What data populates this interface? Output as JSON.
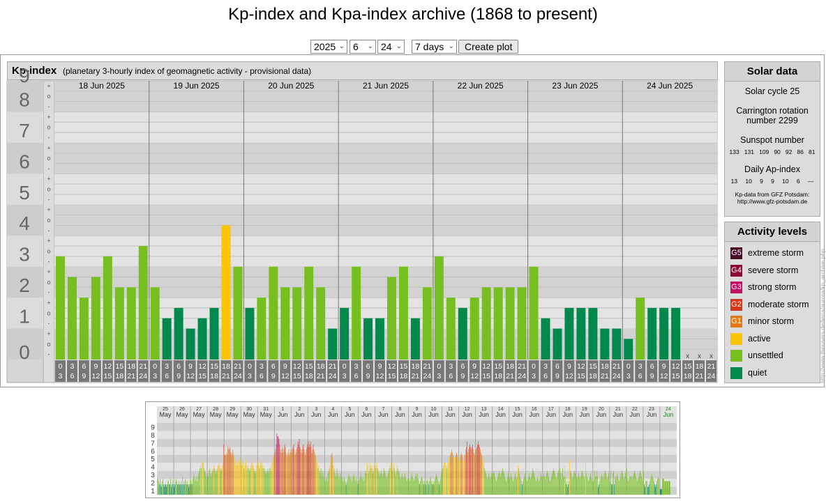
{
  "page": {
    "title": "Kp-index and Kpa-index archive (1868 to present)"
  },
  "controls": {
    "year": "2025",
    "month": "6",
    "day": "24",
    "range": "7 days",
    "create_plot_label": "Create plot"
  },
  "kp_panel": {
    "heading": "Kp-index",
    "description": "(planetary 3-hourly index of geomagnetic activity - provisional data)",
    "y_tick_labels": [
      "0",
      "1",
      "2",
      "3",
      "4",
      "5",
      "6",
      "7",
      "8",
      "9"
    ],
    "sub_ticks": [
      "o",
      "+",
      "-"
    ],
    "no_data_marker": "x"
  },
  "chart_data": {
    "type": "bar",
    "title": "Kp-index",
    "ylim": [
      0,
      9
    ],
    "grid": true,
    "days": [
      "18 Jun 2025",
      "19 Jun 2025",
      "20 Jun 2025",
      "21 Jun 2025",
      "22 Jun 2025",
      "23 Jun 2025",
      "24 Jun 2025"
    ],
    "interval_start": [
      "0",
      "3",
      "6",
      "9",
      "12",
      "15",
      "18",
      "21"
    ],
    "interval_end": [
      "3",
      "6",
      "9",
      "12",
      "15",
      "18",
      "21",
      "24"
    ],
    "values": [
      [
        3.333,
        2.667,
        2.0,
        2.667,
        3.333,
        2.333,
        2.333,
        3.667
      ],
      [
        2.333,
        1.333,
        1.667,
        1.0,
        1.333,
        1.667,
        4.333,
        3.0
      ],
      [
        1.667,
        2.0,
        3.0,
        2.333,
        2.333,
        3.0,
        2.333,
        1.0
      ],
      [
        1.667,
        3.0,
        1.333,
        1.333,
        2.667,
        3.0,
        1.333,
        2.333
      ],
      [
        3.333,
        2.0,
        1.667,
        2.0,
        2.333,
        2.333,
        2.333,
        2.333
      ],
      [
        3.0,
        1.333,
        1.0,
        1.667,
        1.667,
        1.667,
        1.0,
        1.0
      ],
      [
        0.667,
        2.0,
        1.667,
        1.667,
        1.667,
        null,
        null,
        null
      ]
    ]
  },
  "solar": {
    "heading": "Solar data",
    "cycle": "Solar cycle 25",
    "carrington_1": "Carrington rotation",
    "carrington_2": "number 2299",
    "sunspot_label": "Sunspot number",
    "sunspot_values": [
      "133",
      "131",
      "109",
      "90",
      "92",
      "86",
      "81"
    ],
    "ap_label": "Daily Ap-index",
    "ap_values": [
      "13",
      "10",
      "9",
      "9",
      "10",
      "6",
      "—"
    ],
    "source_1": "Kp-data from GFZ Potsdam:",
    "source_2": "http://www.gfz-potsdam.de"
  },
  "activity": {
    "heading": "Activity levels",
    "levels": [
      {
        "badge": "G5",
        "label": "extreme storm",
        "color": "#4a0d2a"
      },
      {
        "badge": "G4",
        "label": "severe storm",
        "color": "#8c0a3c"
      },
      {
        "badge": "G3",
        "label": "strong storm",
        "color": "#c21063"
      },
      {
        "badge": "G2",
        "label": "moderate storm",
        "color": "#d63518"
      },
      {
        "badge": "G1",
        "label": "minor storm",
        "color": "#e07a12"
      },
      {
        "badge": "",
        "label": "active",
        "color": "#fac400"
      },
      {
        "badge": "",
        "label": "unsettled",
        "color": "#77bf1e"
      },
      {
        "badge": "",
        "label": "quiet",
        "color": "#00894a"
      }
    ]
  },
  "side_url": "http://www.theusers.de/terra/aurora/kp_archive.php",
  "mini": {
    "y_tick_labels": [
      "1",
      "2",
      "3",
      "4",
      "5",
      "6",
      "7",
      "8",
      "9"
    ],
    "days": [
      {
        "d": "25",
        "m": "May"
      },
      {
        "d": "26",
        "m": "May"
      },
      {
        "d": "27",
        "m": "May"
      },
      {
        "d": "28",
        "m": "May"
      },
      {
        "d": "29",
        "m": "May"
      },
      {
        "d": "30",
        "m": "May"
      },
      {
        "d": "31",
        "m": "May"
      },
      {
        "d": "1",
        "m": "Jun"
      },
      {
        "d": "2",
        "m": "Jun"
      },
      {
        "d": "3",
        "m": "Jun"
      },
      {
        "d": "4",
        "m": "Jun"
      },
      {
        "d": "5",
        "m": "Jun"
      },
      {
        "d": "6",
        "m": "Jun"
      },
      {
        "d": "7",
        "m": "Jun"
      },
      {
        "d": "8",
        "m": "Jun"
      },
      {
        "d": "9",
        "m": "Jun"
      },
      {
        "d": "10",
        "m": "Jun"
      },
      {
        "d": "11",
        "m": "Jun"
      },
      {
        "d": "12",
        "m": "Jun"
      },
      {
        "d": "13",
        "m": "Jun"
      },
      {
        "d": "14",
        "m": "Jun"
      },
      {
        "d": "15",
        "m": "Jun"
      },
      {
        "d": "16",
        "m": "Jun"
      },
      {
        "d": "17",
        "m": "Jun"
      },
      {
        "d": "18",
        "m": "Jun"
      },
      {
        "d": "19",
        "m": "Jun"
      },
      {
        "d": "20",
        "m": "Jun"
      },
      {
        "d": "21",
        "m": "Jun"
      },
      {
        "d": "22",
        "m": "Jun"
      },
      {
        "d": "23",
        "m": "Jun"
      },
      {
        "d": "24",
        "m": "Jun",
        "current": true
      }
    ],
    "values": [
      [
        2,
        2,
        1.7,
        1.3,
        2,
        1.3,
        1,
        1.7,
        2,
        1.3,
        1,
        1.3,
        1.3,
        1,
        1.3,
        1.7,
        1.7,
        1.3,
        1.3,
        2,
        1,
        1.3,
        1.7,
        1.3
      ],
      [
        1,
        1.3,
        1.7,
        2,
        1.7,
        1.3,
        1.3,
        1.7,
        1.3,
        1.3,
        1.7,
        1.3,
        2.3,
        1.3,
        1.7,
        1.3,
        2,
        1.7,
        1.3,
        1.7,
        1.3,
        1,
        1.3,
        2
      ],
      [
        1.3,
        1.7,
        1.3,
        2,
        2.7,
        2.3,
        1.7,
        2,
        2.3,
        1.7,
        2.3,
        2.7,
        3,
        3.3,
        3.7,
        3.3,
        4,
        4.3,
        4,
        3.3,
        3,
        2.7,
        2.3,
        2
      ],
      [
        2.7,
        2.3,
        3,
        3.3,
        2.7,
        2.3,
        2.7,
        3,
        3.3,
        3.7,
        3.3,
        3,
        2.7,
        3,
        3.3,
        3.7,
        4.3,
        3.7,
        3.3,
        3,
        3.3,
        3.7,
        4,
        6.3
      ],
      [
        5,
        5,
        5,
        5.3,
        5,
        6,
        5.7,
        5.7,
        6,
        5.3,
        5,
        5.3,
        5.7,
        5,
        4.7,
        4.3,
        4.3,
        3.7,
        4.3,
        4,
        3.7,
        4.3,
        4.7,
        4.3
      ],
      [
        4,
        3.7,
        4.3,
        4,
        3.3,
        3.7,
        4,
        4.3,
        3.7,
        3.3,
        3.7,
        3.3,
        3,
        3.3,
        3.7,
        4,
        4.3,
        3.7,
        3.3,
        3,
        2.7,
        3,
        3.7,
        4.3
      ],
      [
        3.7,
        4,
        3.3,
        3.7,
        4.3,
        4,
        3.7,
        3.3,
        3.7,
        3.3,
        3,
        2.7,
        2.7,
        3,
        3.3,
        2.7,
        3,
        3.3,
        3.7,
        3,
        4,
        4.3,
        4.7,
        5
      ],
      [
        5.3,
        5.7,
        6.3,
        7.7,
        7.3,
        7.3,
        7.0,
        6.3,
        5.7,
        5.3,
        5.7,
        6,
        5.3,
        5.7,
        6.3,
        6,
        5.3,
        4.7,
        5,
        5.3,
        5.7,
        5,
        5.3,
        5.7
      ],
      [
        5.3,
        5.7,
        6,
        6.3,
        5.7,
        5,
        5.3,
        5.7,
        6,
        6.7,
        6.3,
        7,
        6,
        5.7,
        5.3,
        5.7,
        6,
        6.3,
        5.7,
        5.3,
        5,
        5.7,
        6,
        6.3
      ],
      [
        6.7,
        6,
        6.3,
        6.7,
        6,
        5.3,
        5.7,
        6.3,
        5.7,
        5.3,
        5,
        4.7,
        4.3,
        4,
        3.3,
        3.7,
        3,
        2.7,
        3.3,
        2.3,
        3,
        2.7,
        2.3,
        2
      ],
      [
        1.7,
        2,
        2.3,
        1.7,
        2.7,
        3,
        3.3,
        3.7,
        4.3,
        5,
        5.3,
        4.7,
        3.7,
        3.3,
        2.7,
        2.3,
        2.7,
        3.3,
        2.3,
        2.7,
        2,
        2.3,
        2.7,
        2
      ],
      [
        2.3,
        2,
        1.7,
        2.3,
        2,
        1.7,
        1.3,
        1.7,
        2,
        2.3,
        2.7,
        2.3,
        2,
        2.3,
        1.7,
        2,
        2.3,
        2.7,
        2.3,
        1.7,
        2,
        2.3,
        1.7,
        1.3
      ],
      [
        1.7,
        2,
        2.3,
        2.7,
        2.3,
        2,
        2.3,
        1.7,
        2,
        2.7,
        3,
        2.7,
        4,
        3.7,
        2.7,
        3,
        4,
        3.3,
        3.7,
        3.3,
        2.7,
        3,
        3.7,
        4
      ],
      [
        3.3,
        3.7,
        4,
        3.3,
        3,
        2.7,
        2.3,
        2.7,
        3,
        2.7,
        2.3,
        2.7,
        3.3,
        3,
        2.7,
        2.3,
        2,
        2.3,
        2.7,
        3,
        3.3,
        3.7,
        4,
        3.3
      ],
      [
        3,
        3.7,
        4,
        3.3,
        2.7,
        2.3,
        3,
        3.7,
        3.3,
        3,
        2.7,
        2.3,
        2,
        2.3,
        2.7,
        2.3,
        2,
        2.3,
        2.7,
        2.3,
        2,
        1.7,
        2,
        2.3
      ],
      [
        2,
        1.7,
        2,
        2.3,
        2.7,
        2.3,
        2,
        1.7,
        2,
        2.3,
        2.7,
        2.3,
        2.7,
        2,
        1.7,
        1.3,
        1.7,
        2,
        2.3,
        2,
        1.7,
        1.3,
        1.7,
        2
      ],
      [
        1.3,
        1.7,
        2,
        1.7,
        1.3,
        1.7,
        2,
        2.3,
        1.7,
        1.3,
        1.7,
        1.3,
        1.7,
        2,
        2.3,
        2.7,
        2.3,
        2,
        1.7,
        1.3,
        1.7,
        2,
        2.7,
        3
      ],
      [
        3.3,
        3.7,
        4,
        4.3,
        4,
        3.7,
        3.3,
        3.7,
        4,
        4.3,
        4.7,
        5,
        5.3,
        5.7,
        5.3,
        5,
        4.7,
        4.3,
        4.7,
        5,
        5.3,
        5,
        4.7,
        4.3
      ],
      [
        4.3,
        4.7,
        5,
        5.3,
        5,
        4.7,
        4.3,
        4.7,
        5,
        5.7,
        6,
        6.7,
        5.3,
        5.7,
        6,
        6.3,
        6,
        5.7,
        6,
        6.3,
        5.7,
        5.3,
        5,
        5.3
      ],
      [
        5.7,
        6,
        6.3,
        6.7,
        6.3,
        6,
        5.7,
        5.3,
        5,
        4.7,
        4.3,
        3.7,
        3.3,
        3,
        2.7,
        2.3,
        2,
        2.3,
        2.7,
        2.3,
        2,
        2.3,
        2.7,
        2.3
      ],
      [
        2.7,
        3,
        2.7,
        2.3,
        2,
        1.7,
        2,
        2.3,
        2.7,
        3,
        2.7,
        2.3,
        2.7,
        3,
        3.3,
        3,
        2.7,
        2.3,
        2,
        1.7,
        2,
        2.3,
        2.7,
        2.3
      ],
      [
        2,
        2.3,
        2.7,
        2.3,
        2,
        1.7,
        2,
        2.3,
        2.7,
        2.3,
        2,
        2.3,
        3.7,
        3.3,
        2.7,
        2.3,
        2,
        1.7,
        1.3,
        1.7,
        2,
        2.3,
        2.7,
        2.3
      ],
      [
        2,
        1.7,
        2,
        2.3,
        2.7,
        2.3,
        2,
        2.3,
        2.7,
        3.3,
        3,
        2.7,
        2.3,
        2,
        1.7,
        2,
        2.3,
        2,
        1.7,
        2,
        2.3,
        2.7,
        2.3,
        2
      ],
      [
        2.3,
        2.7,
        2.3,
        2,
        2.3,
        2.7,
        3,
        2.7,
        2.3,
        2,
        1.7,
        2,
        2.3,
        2.7,
        3,
        3.3,
        3,
        2.7,
        2.3,
        2,
        2.3,
        2.7,
        3,
        2.7
      ],
      [
        3.3,
        2.7,
        2,
        2.7,
        3.3,
        2.3,
        2.3,
        3.7,
        2.3,
        1.3,
        1.7,
        1,
        1.3,
        1.7,
        4.3,
        3,
        2.7,
        2.3,
        2,
        2.3,
        2.7,
        3,
        2.7,
        2.3
      ],
      [
        2.3,
        2,
        2.3,
        2.7,
        2.3,
        2,
        2.3,
        2.7,
        3,
        2.7,
        2.3,
        2,
        2.3,
        4.3,
        2.7,
        2.3,
        2,
        1.7,
        2,
        2.3,
        2.7,
        2.3,
        2,
        1.7
      ],
      [
        1.7,
        2,
        3,
        2.3,
        2.3,
        3,
        2.3,
        1,
        1.3,
        1.7,
        2,
        2.3,
        2.7,
        2.3,
        2,
        2.3,
        2.7,
        3,
        2.7,
        2.3,
        2,
        2.3,
        2.7,
        2.3
      ],
      [
        1.7,
        3,
        1.3,
        1.3,
        2.7,
        3,
        1.3,
        2.3,
        2,
        2.3,
        2.7,
        2.3,
        2,
        1.7,
        2,
        2.3,
        2.7,
        3,
        2.7,
        2.3,
        2,
        2.3,
        2.7,
        2.3
      ],
      [
        3.3,
        2,
        1.7,
        2,
        2.3,
        2.3,
        2.3,
        2.3,
        2,
        2.3,
        2.7,
        3,
        2.7,
        2.3,
        2,
        1.7,
        2,
        2.3,
        2.7,
        3,
        2.7,
        2.3,
        2,
        1.7
      ],
      [
        3,
        1.3,
        1,
        1.7,
        1.7,
        1.7,
        1,
        1,
        1.3,
        1.7,
        2,
        2.3,
        2.7,
        2.3,
        2,
        1.7,
        1.3,
        1,
        1.3,
        1.7,
        2,
        2.3,
        2,
        1.7
      ],
      [
        0.7,
        2,
        1.7,
        1.7,
        1.7,
        null,
        null,
        null
      ]
    ]
  }
}
